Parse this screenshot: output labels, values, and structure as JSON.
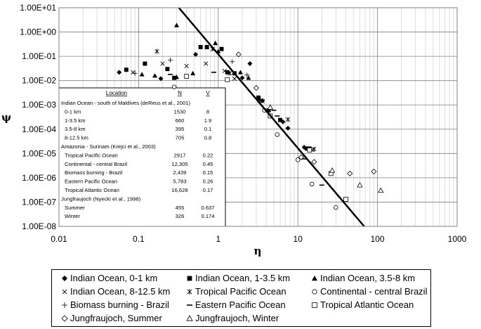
{
  "chart_data": {
    "type": "scatter",
    "xlabel": "η",
    "ylabel": "ψ",
    "log_x": true,
    "log_y": true,
    "xlim": [
      0.01,
      1000
    ],
    "ylim": [
      1e-08,
      10
    ],
    "grid": true,
    "x_tick_labels": [
      "0.01",
      "0.1",
      "1",
      "10",
      "100",
      "1000"
    ],
    "y_tick_labels": [
      "1.00E-08",
      "1.00E-07",
      "1.00E-06",
      "1.00E-05",
      "1.00E-04",
      "1.00E-03",
      "1.00E-02",
      "1.00E-01",
      "1.00E+00",
      "1.00E+01"
    ],
    "fit_line": {
      "x": [
        0.32,
        68
      ],
      "y": [
        10,
        1e-08
      ]
    },
    "series": [
      {
        "name": "Indian Ocean, 0-1 km",
        "marker": "diamond-filled",
        "points": [
          [
            0.057,
            0.022
          ],
          [
            0.19,
            0.012
          ],
          [
            0.52,
            0.12
          ],
          [
            2.0,
            0.013
          ],
          [
            2.5,
            0.05
          ],
          [
            3.6,
            0.0015
          ],
          [
            6.5,
            0.0002
          ],
          [
            7.5,
            0.00011
          ],
          [
            12,
            1.8e-05
          ]
        ]
      },
      {
        "name": "Indian Ocean, 1-3.5 km",
        "marker": "square-filled",
        "points": [
          [
            0.07,
            0.028
          ],
          [
            0.12,
            0.05
          ],
          [
            0.23,
            0.03
          ],
          [
            0.28,
            0.013
          ],
          [
            0.6,
            0.24
          ],
          [
            0.72,
            0.24
          ],
          [
            1.1,
            0.2
          ],
          [
            1.3,
            0.022
          ],
          [
            1.6,
            0.02
          ],
          [
            3.2,
            0.002
          ],
          [
            4.3,
            0.0006
          ],
          [
            6.0,
            0.00024
          ],
          [
            13,
            1.6e-05
          ],
          [
            14,
            1.6e-05
          ]
        ]
      },
      {
        "name": "Indian Ocean, 3.5-8 km",
        "marker": "triangle-filled",
        "points": [
          [
            0.11,
            0.018
          ],
          [
            0.16,
            0.016
          ],
          [
            0.3,
            1.9
          ],
          [
            0.3,
            0.014
          ],
          [
            0.48,
            0.02
          ],
          [
            0.92,
            0.35
          ],
          [
            1.0,
            0.16
          ],
          [
            1.9,
            0.022
          ],
          [
            2.4,
            0.013
          ],
          [
            14,
            1.5e-05
          ]
        ]
      },
      {
        "name": "Indian Ocean, 8-12.5 km",
        "marker": "x",
        "points": [
          [
            0.085,
            0.022
          ],
          [
            0.2,
            0.05
          ],
          [
            0.4,
            0.04
          ],
          [
            0.7,
            0.05
          ],
          [
            1.2,
            0.025
          ],
          [
            1.6,
            0.012
          ],
          [
            3.6,
            0.0014
          ],
          [
            15,
            1.4e-05
          ]
        ]
      },
      {
        "name": "Tropical Pacific Ocean",
        "marker": "star",
        "points": [
          [
            0.17,
            0.16
          ],
          [
            0.85,
            0.2
          ],
          [
            1.4,
            0.02
          ],
          [
            3.3,
            0.0015
          ],
          [
            7.5,
            0.00025
          ],
          [
            16,
            1.5e-05
          ]
        ]
      },
      {
        "name": "Continental - central Brazil",
        "marker": "circle-open",
        "points": [
          [
            0.28,
            0.0055
          ],
          [
            3.8,
            0.0006
          ],
          [
            5.5,
            6e-05
          ],
          [
            10,
            5.5e-06
          ],
          [
            15,
            5.5e-07
          ],
          [
            30,
            6e-08
          ]
        ]
      },
      {
        "name": "Biomass burning - Brazil",
        "marker": "plus",
        "points": [
          [
            0.09,
            0.02
          ],
          [
            0.25,
            0.07
          ],
          [
            1.5,
            0.06
          ],
          [
            2.3,
            0.017
          ],
          [
            4.5,
            0.00035
          ]
        ]
      },
      {
        "name": "Eastern Pacific Ocean",
        "marker": "dash",
        "points": [
          [
            0.25,
            0.018
          ],
          [
            0.88,
            0.022
          ],
          [
            5.0,
            0.0006
          ],
          [
            5.5,
            0.00035
          ],
          [
            12,
            6e-06
          ],
          [
            20,
            5e-07
          ]
        ]
      },
      {
        "name": "Tropical Atlantic Ocean",
        "marker": "square-open",
        "points": [
          [
            0.4,
            0.015
          ],
          [
            1.3,
            0.011
          ],
          [
            4.5,
            0.00035
          ],
          [
            14,
            1.4e-05
          ],
          [
            26,
            1.5e-06
          ],
          [
            40,
            1.3e-07
          ]
        ]
      },
      {
        "name": "Jungfraujoch, Summer",
        "marker": "diamond-open",
        "points": [
          [
            1.8,
            0.12
          ],
          [
            3.0,
            0.005
          ],
          [
            11,
            7e-06
          ],
          [
            16,
            4.5e-06
          ],
          [
            45,
            1.5e-06
          ],
          [
            90,
            1.8e-06
          ]
        ]
      },
      {
        "name": "Jungfraujoch, Winter",
        "marker": "triangle-open",
        "points": [
          [
            4.5,
            0.0008
          ],
          [
            27,
            2e-06
          ],
          [
            60,
            5e-07
          ],
          [
            110,
            3e-07
          ]
        ]
      }
    ]
  },
  "inset_table": {
    "headers": [
      "Location",
      "N",
      "V"
    ],
    "rows": [
      {
        "label": "Indian Ocean - south of Maldives (deReus et al., 2001)",
        "n": "",
        "v": "",
        "group": true
      },
      {
        "label": "0-1 km",
        "n": "1530",
        "v": "8",
        "group": false
      },
      {
        "label": "1-3.5 km",
        "n": "660",
        "v": "1.9",
        "group": false
      },
      {
        "label": "3.5-8 km",
        "n": "395",
        "v": "0.1",
        "group": false
      },
      {
        "label": "8-12.5 km",
        "n": "705",
        "v": "0.8",
        "group": false
      },
      {
        "label": "Amazonia - Surinam (Krejci et al., 2003)",
        "n": "",
        "v": "",
        "group": true
      },
      {
        "label": "Tropical Pacific Ocean",
        "n": "2917",
        "v": "0.22",
        "group": false
      },
      {
        "label": "Continental - central Brazil",
        "n": "12,305",
        "v": "0.45",
        "group": false
      },
      {
        "label": "Biomass burning - Brazil",
        "n": "2,439",
        "v": "0.15",
        "group": false
      },
      {
        "label": "Eastern Pacific Ocean",
        "n": "5,783",
        "v": "0.26",
        "group": false
      },
      {
        "label": "Tropical Atlantic Ocean",
        "n": "16,628",
        "v": "0.17",
        "group": false
      },
      {
        "label": "Jungfraujoch (Nyecki et al., 1998)",
        "n": "",
        "v": "",
        "group": true
      },
      {
        "label": "Summer",
        "n": "455",
        "v": "0.637",
        "group": false
      },
      {
        "label": "Winter",
        "n": "326",
        "v": "0.174",
        "group": false
      }
    ]
  },
  "legend": {
    "entries": [
      {
        "label": "Indian Ocean, 0-1 km",
        "marker": "diamond-filled"
      },
      {
        "label": "Indian Ocean, 1-3.5 km",
        "marker": "square-filled"
      },
      {
        "label": "Indian Ocean, 3.5-8 km",
        "marker": "triangle-filled"
      },
      {
        "label": "Indian Ocean, 8-12.5 km",
        "marker": "x"
      },
      {
        "label": "Tropical Pacific Ocean",
        "marker": "star"
      },
      {
        "label": "Continental - central Brazil",
        "marker": "circle-open"
      },
      {
        "label": "Biomass burning - Brazil",
        "marker": "plus"
      },
      {
        "label": "Eastern Pacific Ocean",
        "marker": "dash"
      },
      {
        "label": "Tropical Atlantic Ocean",
        "marker": "square-open"
      },
      {
        "label": "Jungfraujoch, Summer",
        "marker": "diamond-open"
      },
      {
        "label": "Jungfraujoch, Winter",
        "marker": "triangle-open"
      }
    ]
  }
}
